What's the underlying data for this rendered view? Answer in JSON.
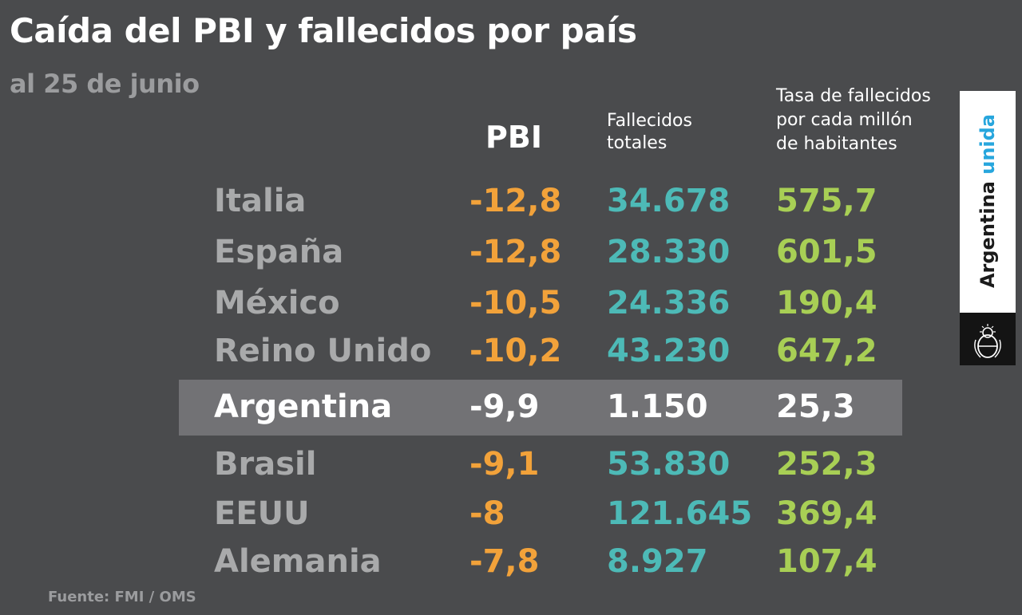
{
  "header": {
    "title": "Caída del PBI y fallecidos por país",
    "subtitle": "al 25 de junio"
  },
  "columns": {
    "pbi": "PBI",
    "fallecidos": [
      "Fallecidos",
      "totales"
    ],
    "tasa": [
      "Tasa de fallecidos",
      "por cada millón",
      "de habitantes"
    ]
  },
  "colors": {
    "pbi": "#f2a23a",
    "fallecidos": "#4dbab7",
    "tasa": "#a8cf55",
    "highlight_row": "#727275",
    "background": "#4a4b4d"
  },
  "chart_data": {
    "type": "table",
    "title": "Caída del PBI y fallecidos por país",
    "subtitle": "al 25 de junio",
    "highlighted": "Argentina",
    "rows": [
      {
        "country": "Italia",
        "pbi": "-12,8",
        "fallecidos": "34.678",
        "tasa": "575,7"
      },
      {
        "country": "España",
        "pbi": "-12,8",
        "fallecidos": "28.330",
        "tasa": "601,5"
      },
      {
        "country": "México",
        "pbi": "-10,5",
        "fallecidos": "24.336",
        "tasa": "190,4"
      },
      {
        "country": "Reino Unido",
        "pbi": "-10,2",
        "fallecidos": "43.230",
        "tasa": "647,2"
      },
      {
        "country": "Argentina",
        "pbi": "-9,9",
        "fallecidos": "1.150",
        "tasa": "25,3"
      },
      {
        "country": "Brasil",
        "pbi": "-9,1",
        "fallecidos": "53.830",
        "tasa": "252,3"
      },
      {
        "country": "EEUU",
        "pbi": "-8",
        "fallecidos": "121.645",
        "tasa": "369,4"
      },
      {
        "country": "Alemania",
        "pbi": "-7,8",
        "fallecidos": "8.927",
        "tasa": "107,4"
      }
    ]
  },
  "source": "Fuente: FMI / OMS",
  "badge": {
    "text": "Argentina",
    "accent": "unida",
    "seal_icon": "coat-of-arms-icon"
  }
}
